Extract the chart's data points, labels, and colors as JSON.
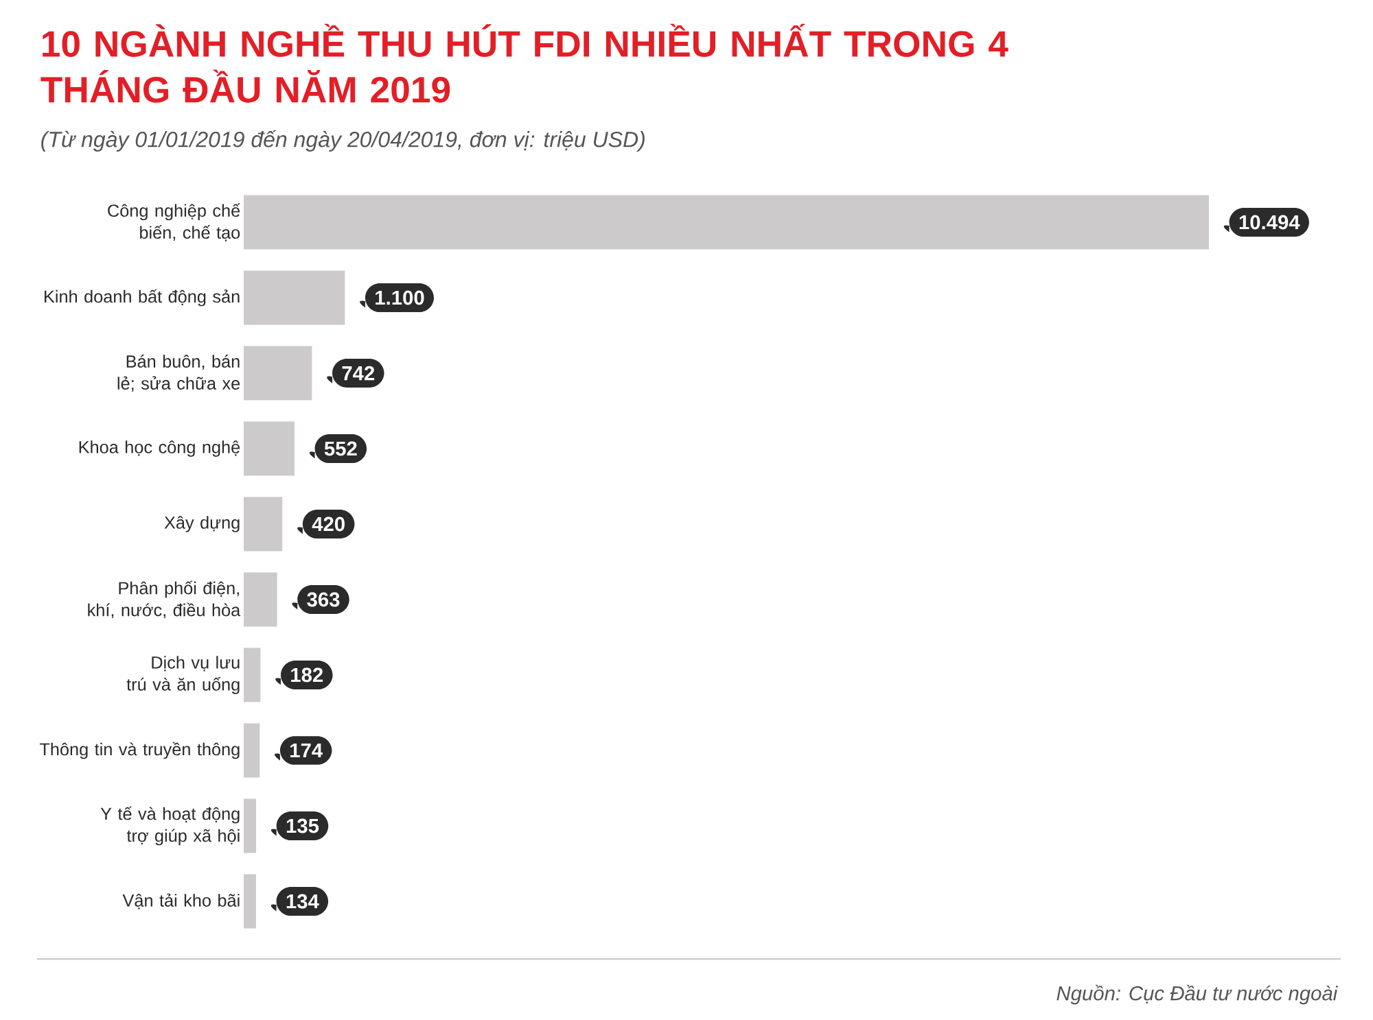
{
  "chart_data": {
    "type": "bar",
    "orientation": "horizontal",
    "title": "10 NGÀNH NGHỀ THU HÚT FDI NHIỀU NHẤT TRONG 4 THÁNG ĐẦU NĂM 2019",
    "subtitle": "(Từ ngày 01/01/2019 đến ngày 20/04/2019, đơn vị: triệu USD)",
    "categories": [
      "Công nghiệp chế biến, chế tạo",
      "Kinh doanh bất động sản",
      "Bán buôn, bán lẻ; sửa chữa xe",
      "Khoa học công nghệ",
      "Xây dựng",
      "Phân phối điện, khí, nước, điều hòa",
      "Dịch vụ lưu trú và ăn uống",
      "Thông tin và truyền thông",
      "Y tế và hoạt động trợ giúp xã hội",
      "Vận tải kho bãi"
    ],
    "values": [
      10494,
      1100,
      742,
      552,
      420,
      363,
      182,
      174,
      135,
      134
    ],
    "value_labels": [
      "10.494",
      "1.100",
      "742",
      "552",
      "420",
      "363",
      "182",
      "174",
      "135",
      "134"
    ],
    "color": "#cccacb",
    "annotations": [
      "Nguồn: Cục Đầu tư nước ngoài"
    ]
  }
}
